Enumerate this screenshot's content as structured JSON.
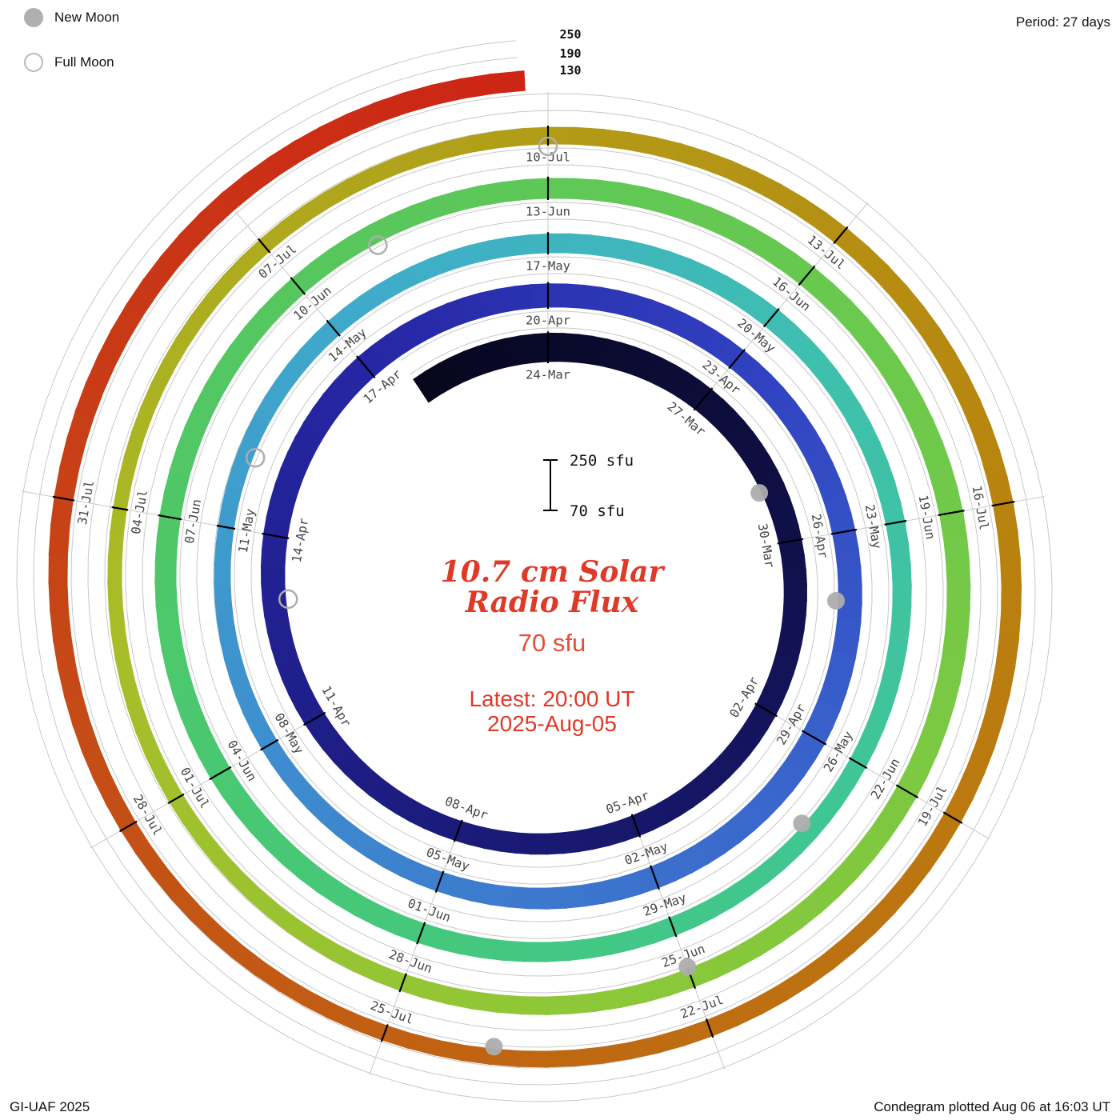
{
  "header": {
    "legend": {
      "new_moon_label": "New Moon",
      "full_moon_label": "Full Moon"
    },
    "period_label": "Period: 27 days"
  },
  "footer": {
    "credit": "GI-UAF 2025",
    "plotted": "Condegram plotted Aug 06 at 16:03 UT"
  },
  "center": {
    "scale_top_label": "250 sfu",
    "scale_bottom_label": "70 sfu",
    "title_line1": "10.7 cm Solar",
    "title_line2": "Radio Flux",
    "subtitle": "70 sfu",
    "latest_line1": "Latest: 20:00 UT",
    "latest_line2": "2025-Aug-05"
  },
  "radial_scale_labels": [
    "250",
    "190",
    "130"
  ],
  "colors": {
    "title_red": "#df3927",
    "grid": "#c8c8c8",
    "tick": "#000000",
    "date_label": "#454545",
    "moon_gray": "#adadad"
  },
  "chart_data": {
    "type": "spiral-condegram",
    "title": "10.7 cm Solar Radio Flux",
    "units": "sfu",
    "baseline_sfu": 70,
    "max_sfu": 250,
    "gridlines_sfu": [
      130,
      190,
      250
    ],
    "period_days": 27,
    "epoch_label": "24-Mar",
    "start_offset_days": -2.5,
    "end_offset_days": 134.8,
    "label_step_days": 3,
    "labels": [
      "24-Mar",
      "27-Mar",
      "30-Mar",
      "02-Apr",
      "05-Apr",
      "08-Apr",
      "11-Apr",
      "14-Apr",
      "17-Apr",
      "20-Apr",
      "23-Apr",
      "26-Apr",
      "29-Apr",
      "02-May",
      "05-May",
      "08-May",
      "11-May",
      "14-May",
      "17-May",
      "20-May",
      "23-May",
      "26-May",
      "29-May",
      "01-Jun",
      "04-Jun",
      "07-Jun",
      "10-Jun",
      "13-Jun",
      "16-Jun",
      "19-Jun",
      "22-Jun",
      "25-Jun",
      "28-Jun",
      "01-Jul",
      "04-Jul",
      "07-Jul",
      "10-Jul",
      "13-Jul",
      "16-Jul",
      "19-Jul",
      "22-Jul",
      "25-Jul",
      "28-Jul",
      "31-Jul"
    ],
    "flux_grid_start_day": -3,
    "flux_step_days": 3,
    "flux_values": [
      168,
      172,
      162,
      152,
      150,
      146,
      142,
      148,
      156,
      160,
      154,
      148,
      152,
      158,
      150,
      140,
      132,
      126,
      132,
      138,
      144,
      138,
      132,
      136,
      142,
      148,
      144,
      138,
      142,
      148,
      154,
      148,
      138,
      130,
      124,
      118,
      124,
      130,
      136,
      142,
      136,
      130,
      124,
      130,
      138,
      144,
      140
    ],
    "new_moon_days": [
      5,
      34,
      64,
      93,
      122
    ],
    "full_moon_days": [
      20,
      49,
      79,
      108
    ],
    "colormap": [
      [
        -3,
        "#06061a"
      ],
      [
        6,
        "#10104a"
      ],
      [
        16,
        "#1c1c80"
      ],
      [
        24,
        "#2626a4"
      ],
      [
        30,
        "#3040c0"
      ],
      [
        37,
        "#3a66cc"
      ],
      [
        45,
        "#3e8ecf"
      ],
      [
        52,
        "#3fadc9"
      ],
      [
        58,
        "#3fc0ae"
      ],
      [
        64,
        "#40c692"
      ],
      [
        70,
        "#46c878"
      ],
      [
        78,
        "#55c75e"
      ],
      [
        86,
        "#6ec94b"
      ],
      [
        94,
        "#8cc838"
      ],
      [
        101,
        "#a8bd28"
      ],
      [
        108,
        "#b29c17"
      ],
      [
        114,
        "#b8830e"
      ],
      [
        121,
        "#bf6a12"
      ],
      [
        127,
        "#c54b16"
      ],
      [
        132,
        "#ca3216"
      ],
      [
        135,
        "#cc2414"
      ]
    ]
  }
}
